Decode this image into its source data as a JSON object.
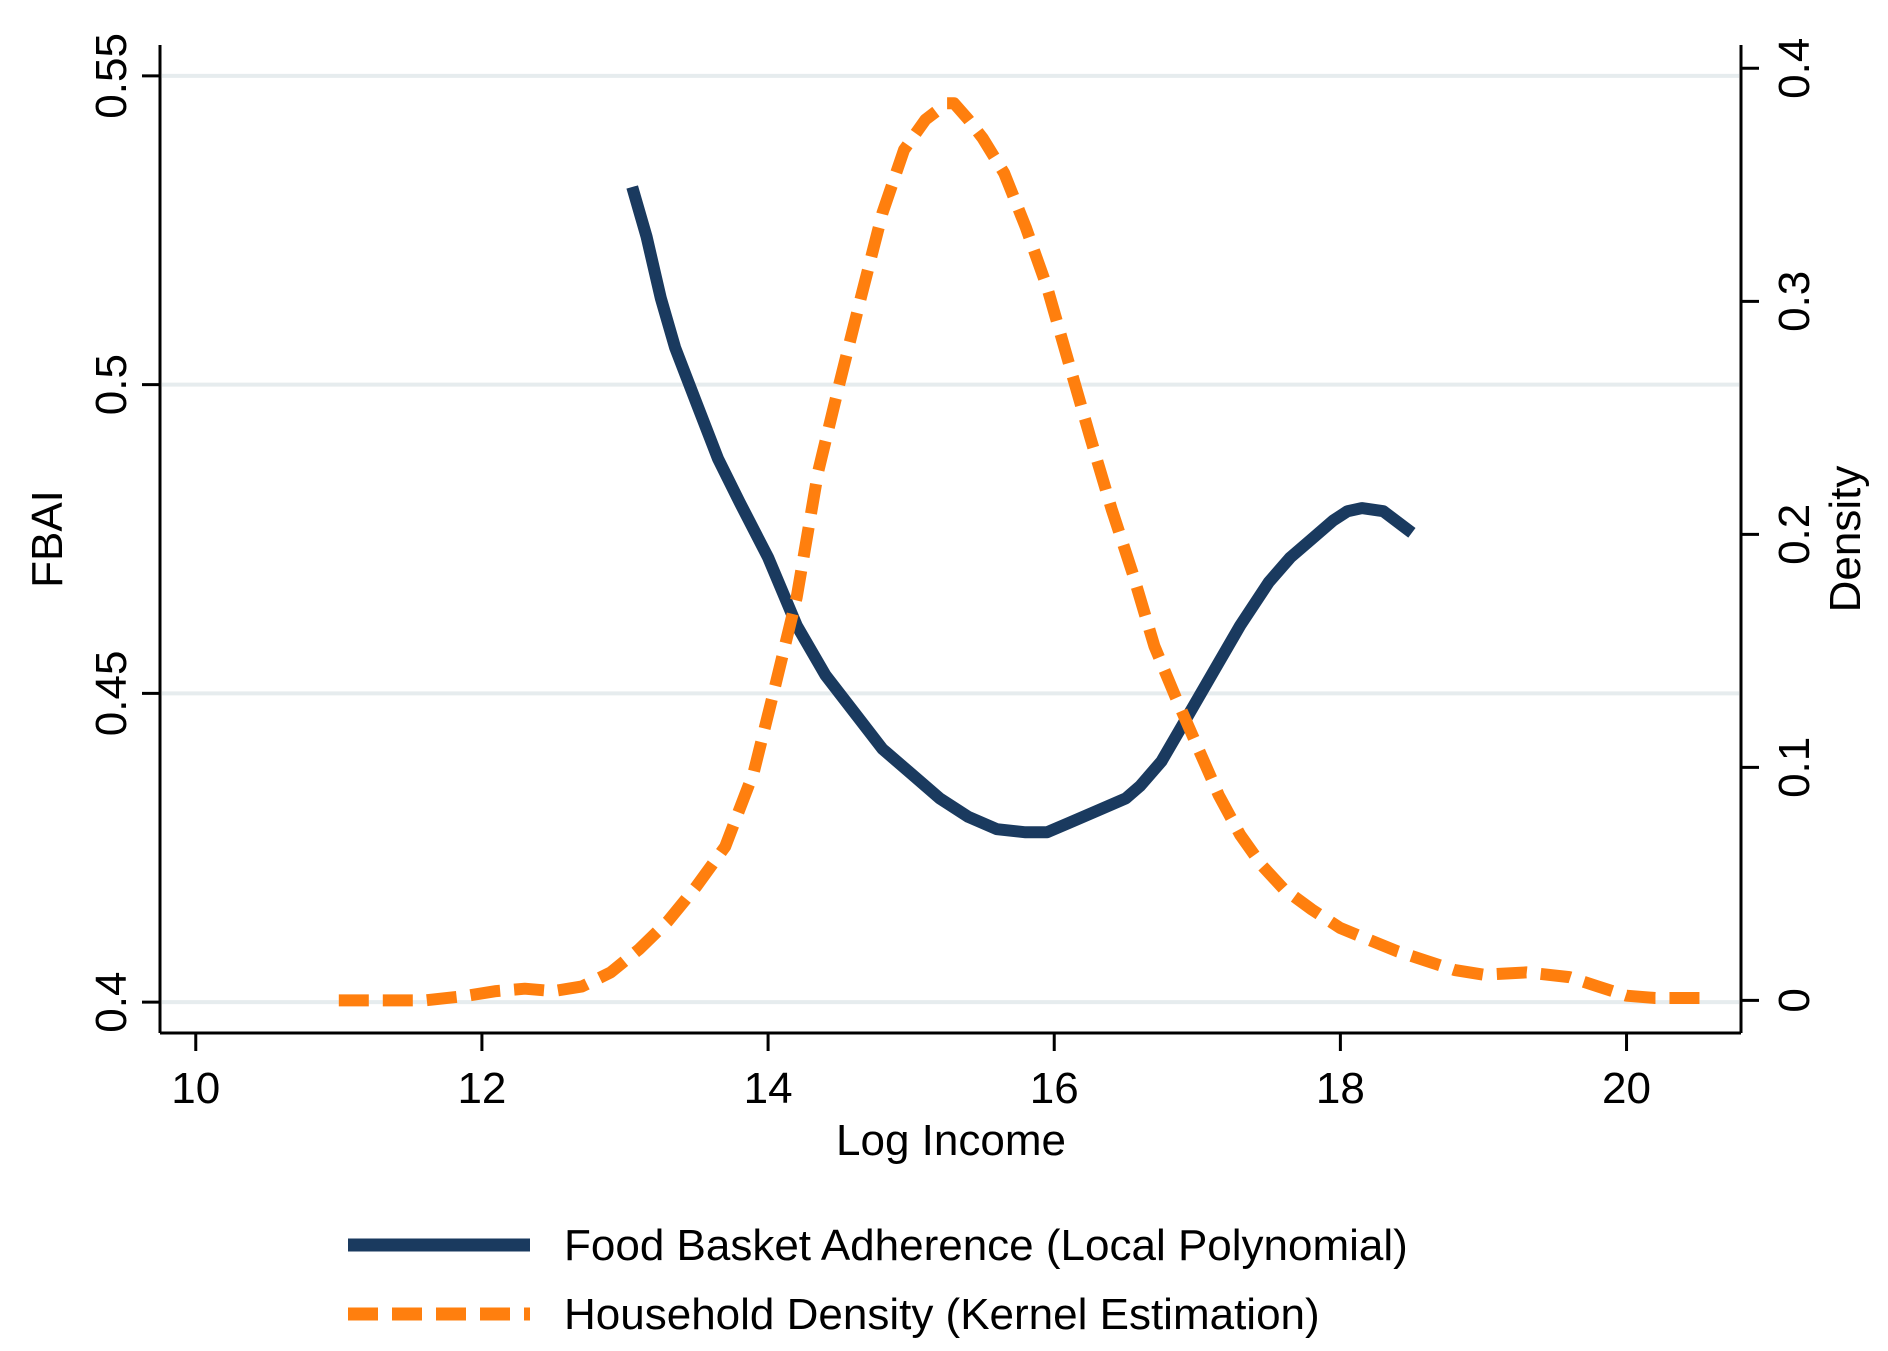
{
  "chart_data": {
    "type": "line",
    "title": "",
    "xlabel": "Log Income",
    "ylabel_left": "FBAI",
    "ylabel_right": "Density",
    "xlim": [
      9.75,
      20.8
    ],
    "ylim_left": [
      0.395,
      0.555
    ],
    "ylim_right": [
      -0.014,
      0.41
    ],
    "x_ticks": [
      10,
      12,
      14,
      16,
      18,
      20
    ],
    "x_tick_labels": [
      "10",
      "12",
      "14",
      "16",
      "18",
      "20"
    ],
    "y_left_ticks": [
      0.4,
      0.45,
      0.5,
      0.55
    ],
    "y_left_tick_labels": [
      "0.4",
      "0.45",
      "0.5",
      "0.55"
    ],
    "y_right_ticks": [
      0,
      0.1,
      0.2,
      0.3,
      0.4
    ],
    "y_right_tick_labels": [
      "0",
      "0.1",
      "0.2",
      "0.3",
      "0.4"
    ],
    "grid": "horizontal, at left-axis ticks",
    "legend_position": "bottom",
    "series": [
      {
        "name": "Food Basket Adherence (Local Polynomial)",
        "axis": "left",
        "style": "solid",
        "color": "#1a3a5f",
        "x": [
          13.05,
          13.15,
          13.25,
          13.35,
          13.5,
          13.65,
          13.8,
          14.0,
          14.2,
          14.4,
          14.6,
          14.8,
          15.0,
          15.2,
          15.4,
          15.6,
          15.8,
          15.95,
          16.1,
          16.3,
          16.5,
          16.6,
          16.75,
          16.9,
          17.1,
          17.3,
          17.5,
          17.65,
          17.8,
          17.95,
          18.05,
          18.15,
          18.3,
          18.5
        ],
        "y": [
          0.532,
          0.524,
          0.514,
          0.506,
          0.497,
          0.488,
          0.481,
          0.472,
          0.461,
          0.453,
          0.447,
          0.441,
          0.437,
          0.433,
          0.43,
          0.428,
          0.4275,
          0.4275,
          0.429,
          0.431,
          0.433,
          0.435,
          0.439,
          0.445,
          0.453,
          0.461,
          0.468,
          0.472,
          0.475,
          0.478,
          0.4795,
          0.48,
          0.4795,
          0.476
        ]
      },
      {
        "name": "Household Density (Kernel Estimation)",
        "axis": "right",
        "style": "dashed",
        "color": "#ff7f0e",
        "x": [
          11.0,
          11.3,
          11.6,
          11.9,
          12.1,
          12.3,
          12.5,
          12.7,
          12.9,
          13.1,
          13.3,
          13.5,
          13.7,
          13.9,
          14.05,
          14.2,
          14.35,
          14.5,
          14.65,
          14.8,
          14.95,
          15.1,
          15.25,
          15.3,
          15.4,
          15.5,
          15.65,
          15.8,
          15.95,
          16.1,
          16.25,
          16.4,
          16.55,
          16.7,
          16.85,
          17.0,
          17.15,
          17.3,
          17.45,
          17.6,
          17.8,
          18.0,
          18.2,
          18.4,
          18.6,
          18.8,
          19.0,
          19.3,
          19.6,
          19.8,
          20.0,
          20.2,
          20.4,
          20.6
        ],
        "y": [
          0.0,
          0.0,
          0.0,
          0.002,
          0.004,
          0.005,
          0.004,
          0.006,
          0.012,
          0.022,
          0.034,
          0.049,
          0.066,
          0.098,
          0.135,
          0.173,
          0.227,
          0.265,
          0.302,
          0.338,
          0.365,
          0.378,
          0.385,
          0.385,
          0.378,
          0.37,
          0.355,
          0.332,
          0.306,
          0.274,
          0.242,
          0.211,
          0.183,
          0.152,
          0.13,
          0.109,
          0.088,
          0.071,
          0.058,
          0.048,
          0.039,
          0.031,
          0.026,
          0.021,
          0.017,
          0.013,
          0.011,
          0.012,
          0.01,
          0.006,
          0.002,
          0.001,
          0.001,
          0.001
        ]
      }
    ]
  }
}
